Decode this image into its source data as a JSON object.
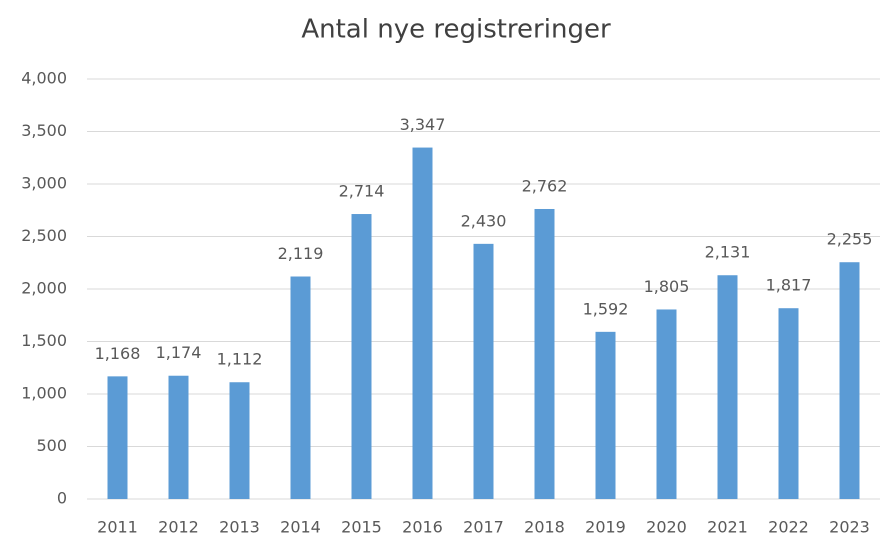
{
  "chart_data": {
    "type": "bar",
    "title": "Antal nye registreringer",
    "categories": [
      "2011",
      "2012",
      "2013",
      "2014",
      "2015",
      "2016",
      "2017",
      "2018",
      "2019",
      "2020",
      "2021",
      "2022",
      "2023"
    ],
    "values": [
      1168,
      1174,
      1112,
      2119,
      2714,
      3347,
      2430,
      2762,
      1592,
      1805,
      2131,
      1817,
      2255
    ],
    "value_labels": [
      "1,168",
      "1,174",
      "1,112",
      "2,119",
      "2,714",
      "3,347",
      "2,430",
      "2,762",
      "1,592",
      "1,805",
      "2,131",
      "1,817",
      "2,255"
    ],
    "color": "#5b9bd5",
    "ylim": [
      0,
      4000
    ],
    "yticks": [
      0,
      500,
      {
        "value": 1000,
        "label": "1,000"
      },
      {
        "value": 1500,
        "label": "1,500"
      },
      {
        "value": 2000,
        "label": "2,000"
      },
      {
        "value": 2500,
        "label": "2,500"
      },
      {
        "value": 3000,
        "label": "3,000"
      },
      {
        "value": 3500,
        "label": "3,500"
      },
      {
        "value": 4000,
        "label": "4,000"
      }
    ],
    "grid": true
  }
}
